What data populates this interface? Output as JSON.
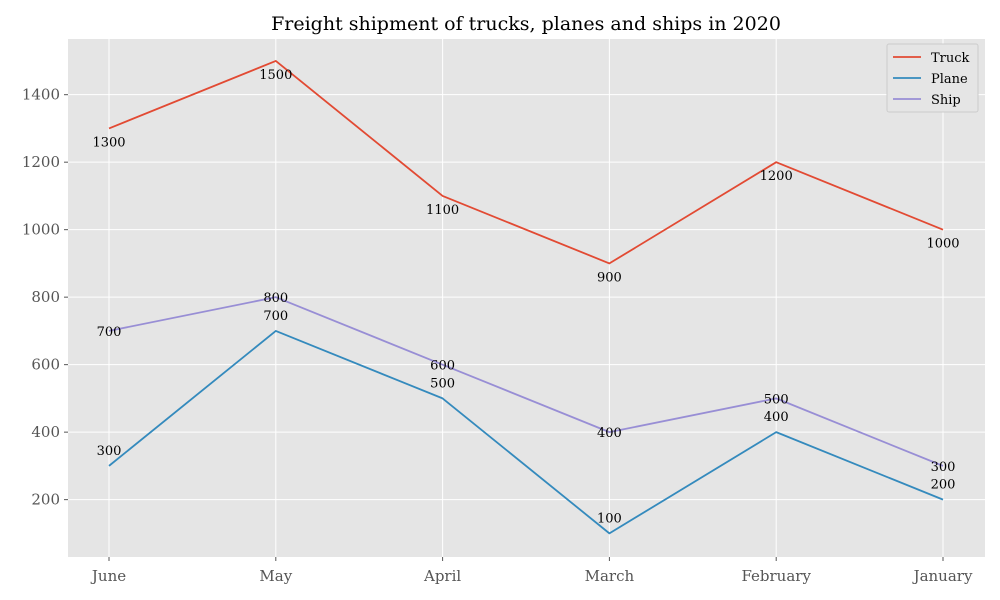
{
  "chart_data": {
    "type": "line",
    "title": "Freight shipment of trucks, planes and ships in 2020",
    "xlabel": "",
    "ylabel": "",
    "categories": [
      "June",
      "May",
      "April",
      "March",
      "February",
      "January"
    ],
    "ylim": [
      30,
      1565
    ],
    "yticks": [
      200,
      400,
      600,
      800,
      1000,
      1200,
      1400
    ],
    "grid": true,
    "legend_position": "top-right",
    "series": [
      {
        "name": "Truck",
        "color": "#E24A33",
        "values": [
          1300,
          1500,
          1100,
          900,
          1200,
          1000
        ],
        "label_position": "below"
      },
      {
        "name": "Plane",
        "color": "#348ABD",
        "values": [
          300,
          700,
          500,
          100,
          400,
          200
        ],
        "label_position": "above"
      },
      {
        "name": "Ship",
        "color": "#988ED5",
        "values": [
          700,
          800,
          600,
          400,
          500,
          300
        ],
        "label_position": "center"
      }
    ]
  }
}
